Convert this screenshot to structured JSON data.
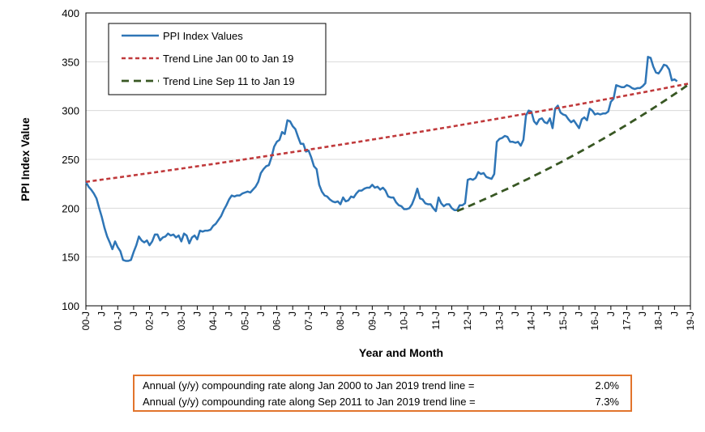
{
  "chart_data": {
    "type": "line",
    "xlabel": "Year and Month",
    "ylabel": "PPI Index Value",
    "ylim": [
      100,
      400
    ],
    "y_ticks": [
      100,
      150,
      200,
      250,
      300,
      350,
      400
    ],
    "x_range": [
      "2000-01",
      "2019-01"
    ],
    "x_ticks": [
      "00-J",
      "J",
      "01-J",
      "J",
      "02-J",
      "J",
      "03-J",
      "J",
      "04-J",
      "J",
      "05-J",
      "J",
      "06-J",
      "J",
      "07-J",
      "J",
      "08-J",
      "J",
      "09-J",
      "J",
      "10-J",
      "J",
      "11-J",
      "J",
      "12-J",
      "J",
      "13-J",
      "J",
      "14-J",
      "J",
      "15-J",
      "J",
      "16-J",
      "J",
      "17-J",
      "J",
      "18-J",
      "J",
      "19-J"
    ],
    "grid": "horizontal",
    "legend_position": "top-left",
    "series": [
      {
        "name": "PPI Index Values",
        "style": "solid",
        "color": "#2e75b6",
        "points": [
          [
            "2000-01",
            227
          ],
          [
            "2000-02",
            222
          ],
          [
            "2000-03",
            219
          ],
          [
            "2000-04",
            215
          ],
          [
            "2000-05",
            210
          ],
          [
            "2000-06",
            200
          ],
          [
            "2000-07",
            191
          ],
          [
            "2000-08",
            180
          ],
          [
            "2000-09",
            171
          ],
          [
            "2000-10",
            165
          ],
          [
            "2000-11",
            158
          ],
          [
            "2000-12",
            166
          ],
          [
            "2001-01",
            160
          ],
          [
            "2001-02",
            156
          ],
          [
            "2001-03",
            147
          ],
          [
            "2001-04",
            146
          ],
          [
            "2001-05",
            146
          ],
          [
            "2001-06",
            147
          ],
          [
            "2001-07",
            155
          ],
          [
            "2001-08",
            162
          ],
          [
            "2001-09",
            171
          ],
          [
            "2001-10",
            167
          ],
          [
            "2001-11",
            165
          ],
          [
            "2001-12",
            167
          ],
          [
            "2002-01",
            162
          ],
          [
            "2002-02",
            166
          ],
          [
            "2002-03",
            173
          ],
          [
            "2002-04",
            173
          ],
          [
            "2002-05",
            167
          ],
          [
            "2002-06",
            170
          ],
          [
            "2002-07",
            171
          ],
          [
            "2002-08",
            174
          ],
          [
            "2002-09",
            172
          ],
          [
            "2002-10",
            173
          ],
          [
            "2002-11",
            170
          ],
          [
            "2002-12",
            172
          ],
          [
            "2003-01",
            166
          ],
          [
            "2003-02",
            174
          ],
          [
            "2003-03",
            172
          ],
          [
            "2003-04",
            164
          ],
          [
            "2003-05",
            170
          ],
          [
            "2003-06",
            172
          ],
          [
            "2003-07",
            168
          ],
          [
            "2003-08",
            177
          ],
          [
            "2003-09",
            176
          ],
          [
            "2003-10",
            177
          ],
          [
            "2003-11",
            177
          ],
          [
            "2003-12",
            178
          ],
          [
            "2004-01",
            182
          ],
          [
            "2004-02",
            184
          ],
          [
            "2004-03",
            188
          ],
          [
            "2004-04",
            192
          ],
          [
            "2004-05",
            198
          ],
          [
            "2004-06",
            203
          ],
          [
            "2004-07",
            209
          ],
          [
            "2004-08",
            213
          ],
          [
            "2004-09",
            212
          ],
          [
            "2004-10",
            213
          ],
          [
            "2004-11",
            213
          ],
          [
            "2004-12",
            215
          ],
          [
            "2005-01",
            216
          ],
          [
            "2005-02",
            217
          ],
          [
            "2005-03",
            216
          ],
          [
            "2005-04",
            219
          ],
          [
            "2005-05",
            222
          ],
          [
            "2005-06",
            227
          ],
          [
            "2005-07",
            236
          ],
          [
            "2005-08",
            240
          ],
          [
            "2005-09",
            243
          ],
          [
            "2005-10",
            244
          ],
          [
            "2005-11",
            252
          ],
          [
            "2005-12",
            263
          ],
          [
            "2006-01",
            268
          ],
          [
            "2006-02",
            270
          ],
          [
            "2006-03",
            278
          ],
          [
            "2006-04",
            276
          ],
          [
            "2006-05",
            290
          ],
          [
            "2006-06",
            289
          ],
          [
            "2006-07",
            284
          ],
          [
            "2006-08",
            281
          ],
          [
            "2006-09",
            273
          ],
          [
            "2006-10",
            266
          ],
          [
            "2006-11",
            266
          ],
          [
            "2006-12",
            258
          ],
          [
            "2007-01",
            259
          ],
          [
            "2007-02",
            252
          ],
          [
            "2007-03",
            243
          ],
          [
            "2007-04",
            240
          ],
          [
            "2007-05",
            224
          ],
          [
            "2007-06",
            217
          ],
          [
            "2007-07",
            213
          ],
          [
            "2007-08",
            212
          ],
          [
            "2007-09",
            209
          ],
          [
            "2007-10",
            207
          ],
          [
            "2007-11",
            206
          ],
          [
            "2007-12",
            207
          ],
          [
            "2008-01",
            204
          ],
          [
            "2008-02",
            211
          ],
          [
            "2008-03",
            207
          ],
          [
            "2008-04",
            208
          ],
          [
            "2008-05",
            212
          ],
          [
            "2008-06",
            211
          ],
          [
            "2008-07",
            215
          ],
          [
            "2008-08",
            218
          ],
          [
            "2008-09",
            218
          ],
          [
            "2008-10",
            220
          ],
          [
            "2008-11",
            221
          ],
          [
            "2008-12",
            221
          ],
          [
            "2009-01",
            224
          ],
          [
            "2009-02",
            221
          ],
          [
            "2009-03",
            222
          ],
          [
            "2009-04",
            219
          ],
          [
            "2009-05",
            221
          ],
          [
            "2009-06",
            218
          ],
          [
            "2009-07",
            212
          ],
          [
            "2009-08",
            211
          ],
          [
            "2009-09",
            211
          ],
          [
            "2009-10",
            206
          ],
          [
            "2009-11",
            203
          ],
          [
            "2009-12",
            202
          ],
          [
            "2010-01",
            199
          ],
          [
            "2010-02",
            199
          ],
          [
            "2010-03",
            200
          ],
          [
            "2010-04",
            204
          ],
          [
            "2010-05",
            211
          ],
          [
            "2010-06",
            220
          ],
          [
            "2010-07",
            210
          ],
          [
            "2010-08",
            209
          ],
          [
            "2010-09",
            205
          ],
          [
            "2010-10",
            204
          ],
          [
            "2010-11",
            204
          ],
          [
            "2010-12",
            200
          ],
          [
            "2011-01",
            197
          ],
          [
            "2011-02",
            211
          ],
          [
            "2011-03",
            205
          ],
          [
            "2011-04",
            202
          ],
          [
            "2011-05",
            204
          ],
          [
            "2011-06",
            204
          ],
          [
            "2011-07",
            200
          ],
          [
            "2011-08",
            198
          ],
          [
            "2011-09",
            198
          ],
          [
            "2011-10",
            203
          ],
          [
            "2011-11",
            203
          ],
          [
            "2011-12",
            205
          ],
          [
            "2012-01",
            229
          ],
          [
            "2012-02",
            230
          ],
          [
            "2012-03",
            229
          ],
          [
            "2012-04",
            231
          ],
          [
            "2012-05",
            237
          ],
          [
            "2012-06",
            235
          ],
          [
            "2012-07",
            236
          ],
          [
            "2012-08",
            232
          ],
          [
            "2012-09",
            231
          ],
          [
            "2012-10",
            230
          ],
          [
            "2012-11",
            235
          ],
          [
            "2012-12",
            268
          ],
          [
            "2013-01",
            271
          ],
          [
            "2013-02",
            272
          ],
          [
            "2013-03",
            274
          ],
          [
            "2013-04",
            273
          ],
          [
            "2013-05",
            268
          ],
          [
            "2013-06",
            268
          ],
          [
            "2013-07",
            267
          ],
          [
            "2013-08",
            268
          ],
          [
            "2013-09",
            264
          ],
          [
            "2013-10",
            270
          ],
          [
            "2013-11",
            295
          ],
          [
            "2013-12",
            300
          ],
          [
            "2014-01",
            299
          ],
          [
            "2014-02",
            289
          ],
          [
            "2014-03",
            286
          ],
          [
            "2014-04",
            291
          ],
          [
            "2014-05",
            292
          ],
          [
            "2014-06",
            288
          ],
          [
            "2014-07",
            287
          ],
          [
            "2014-08",
            292
          ],
          [
            "2014-09",
            282
          ],
          [
            "2014-10",
            302
          ],
          [
            "2014-11",
            305
          ],
          [
            "2014-12",
            298
          ],
          [
            "2015-01",
            296
          ],
          [
            "2015-02",
            295
          ],
          [
            "2015-03",
            291
          ],
          [
            "2015-04",
            288
          ],
          [
            "2015-05",
            290
          ],
          [
            "2015-06",
            286
          ],
          [
            "2015-07",
            282
          ],
          [
            "2015-08",
            291
          ],
          [
            "2015-09",
            293
          ],
          [
            "2015-10",
            290
          ],
          [
            "2015-11",
            302
          ],
          [
            "2015-12",
            300
          ],
          [
            "2016-01",
            296
          ],
          [
            "2016-02",
            297
          ],
          [
            "2016-03",
            296
          ],
          [
            "2016-04",
            297
          ],
          [
            "2016-05",
            297
          ],
          [
            "2016-06",
            299
          ],
          [
            "2016-07",
            309
          ],
          [
            "2016-08",
            312
          ],
          [
            "2016-09",
            326
          ],
          [
            "2016-10",
            325
          ],
          [
            "2016-11",
            324
          ],
          [
            "2016-12",
            324
          ],
          [
            "2017-01",
            326
          ],
          [
            "2017-02",
            325
          ],
          [
            "2017-03",
            323
          ],
          [
            "2017-04",
            322
          ],
          [
            "2017-05",
            323
          ],
          [
            "2017-06",
            323
          ],
          [
            "2017-07",
            325
          ],
          [
            "2017-08",
            328
          ],
          [
            "2017-09",
            355
          ],
          [
            "2017-10",
            354
          ],
          [
            "2017-11",
            345
          ],
          [
            "2017-12",
            339
          ],
          [
            "2018-01",
            338
          ],
          [
            "2018-02",
            342
          ],
          [
            "2018-03",
            347
          ],
          [
            "2018-04",
            346
          ],
          [
            "2018-05",
            342
          ],
          [
            "2018-06",
            331
          ],
          [
            "2018-07",
            332
          ],
          [
            "2018-08",
            330
          ]
        ]
      },
      {
        "name": "Trend Line Jan 00 to Jan 19",
        "style": "dashed",
        "color": "#c0393b",
        "points": [
          [
            "2000-01",
            227
          ],
          [
            "2004-01",
            241.9
          ],
          [
            "2008-01",
            257.7
          ],
          [
            "2012-01",
            274.5
          ],
          [
            "2016-01",
            292.5
          ],
          [
            "2019-01",
            328
          ]
        ]
      },
      {
        "name": "Trend Line Sep 11 to Jan 19",
        "style": "dashed",
        "color": "#385723",
        "points": [
          [
            "2011-09",
            197
          ],
          [
            "2013-01",
            216.3
          ],
          [
            "2014-06",
            238.8
          ],
          [
            "2015-09",
            263.7
          ],
          [
            "2017-02",
            291.3
          ],
          [
            "2019-01",
            328
          ]
        ]
      }
    ]
  },
  "rates_box": {
    "rows": [
      {
        "label": "Annual (y/y) compounding rate along Jan 2000 to Jan 2019 trend line =",
        "value": "2.0%"
      },
      {
        "label": "Annual (y/y) compounding rate along Sep 2011 to Jan 2019 trend line =",
        "value": "7.3%"
      }
    ],
    "border_color": "#e2742c"
  }
}
